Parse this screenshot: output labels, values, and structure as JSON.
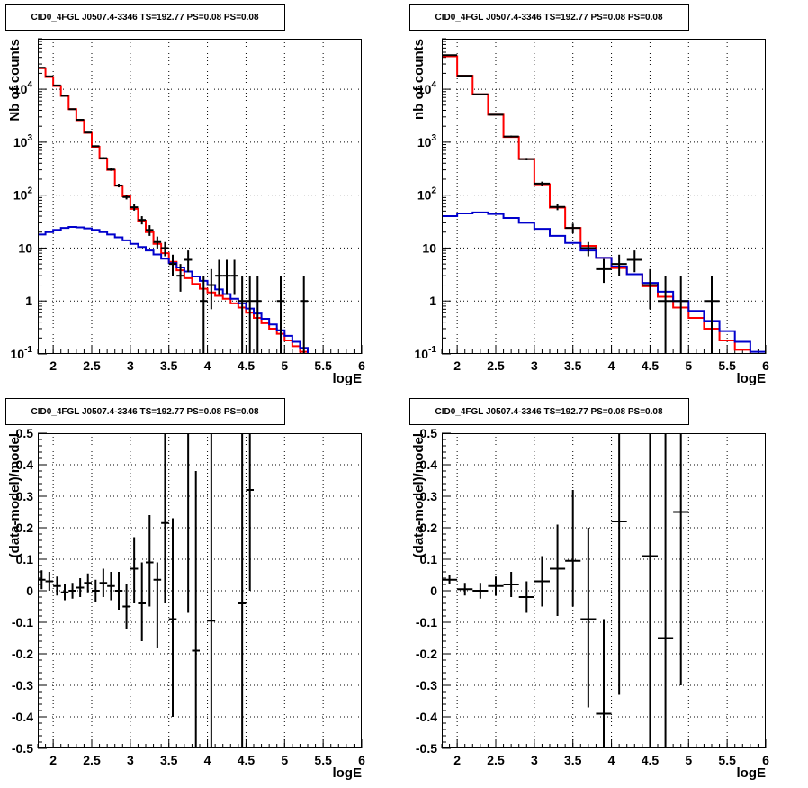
{
  "chart_data": [
    {
      "id": "top-left",
      "type": "line",
      "title": "CID0_4FGL J0507.4-3346 TS=192.77 PS=0.08 PS=0.08",
      "xlabel": "logE",
      "ylabel": "Nb of counts",
      "xlim": [
        1.8,
        6.0
      ],
      "ylim": [
        0.1,
        90000
      ],
      "yscale": "log",
      "grid": true,
      "xticks": [
        "2",
        "2.5",
        "3",
        "3.5",
        "4",
        "4.5",
        "5",
        "5.5",
        "6"
      ],
      "yticks": [
        "10^-1",
        "1",
        "10",
        "10^2",
        "10^3",
        "10^4"
      ],
      "bin_edges": [
        1.8,
        1.9,
        2.0,
        2.1,
        2.2,
        2.3,
        2.4,
        2.5,
        2.6,
        2.7,
        2.8,
        2.9,
        3.0,
        3.1,
        3.2,
        3.3,
        3.4,
        3.5,
        3.6,
        3.7,
        3.8,
        3.9,
        4.0,
        4.1,
        4.2,
        4.3,
        4.4,
        4.5,
        4.6,
        4.7,
        4.8,
        4.9,
        5.0,
        5.1,
        5.2,
        5.3,
        5.4,
        5.5,
        5.6,
        5.7,
        5.8,
        5.9,
        6.0
      ],
      "series": [
        {
          "color": "#ff0000",
          "kind": "step",
          "values": [
            25000,
            17000,
            11500,
            7500,
            4200,
            2600,
            1500,
            820,
            490,
            300,
            150,
            95,
            55,
            33,
            20,
            12,
            8,
            5.5,
            3.8,
            2.7,
            2.1,
            1.7,
            1.45,
            1.25,
            1.1,
            0.9,
            0.75,
            0.6,
            0.48,
            0.38,
            0.3,
            0.24,
            0.18,
            0.14,
            0.11,
            0.1,
            0.1,
            0.1,
            0.1,
            0.1,
            0.1,
            0.1
          ]
        },
        {
          "color": "#0000cc",
          "kind": "step",
          "values": [
            18,
            20,
            22,
            24,
            25,
            24.5,
            23.5,
            22,
            20,
            18,
            16,
            14,
            12,
            10.5,
            9,
            7.6,
            6.3,
            5.2,
            4.3,
            3.6,
            2.9,
            2.4,
            2.0,
            1.65,
            1.35,
            1.1,
            0.9,
            0.72,
            0.58,
            0.46,
            0.36,
            0.28,
            0.22,
            0.17,
            0.13,
            0.1,
            0.1,
            0.1,
            0.1,
            0.1,
            0.1,
            0.1
          ]
        },
        {
          "color": "#000000",
          "kind": "points",
          "points": [
            {
              "x": 1.85,
              "y": 25500,
              "xerr": 0.05,
              "ylo": 25300,
              "yhi": 25700
            },
            {
              "x": 1.95,
              "y": 17500,
              "xerr": 0.05,
              "ylo": 17300,
              "yhi": 17700
            },
            {
              "x": 2.05,
              "y": 11800,
              "xerr": 0.05,
              "ylo": 11600,
              "yhi": 12000
            },
            {
              "x": 2.15,
              "y": 7500,
              "xerr": 0.05,
              "ylo": 7350,
              "yhi": 7650
            },
            {
              "x": 2.25,
              "y": 4200,
              "xerr": 0.05,
              "ylo": 4100,
              "yhi": 4300
            },
            {
              "x": 2.35,
              "y": 2650,
              "xerr": 0.05,
              "ylo": 2580,
              "yhi": 2720
            },
            {
              "x": 2.45,
              "y": 1520,
              "xerr": 0.05,
              "ylo": 1480,
              "yhi": 1560
            },
            {
              "x": 2.55,
              "y": 840,
              "xerr": 0.05,
              "ylo": 810,
              "yhi": 870
            },
            {
              "x": 2.65,
              "y": 500,
              "xerr": 0.05,
              "ylo": 478,
              "yhi": 522
            },
            {
              "x": 2.75,
              "y": 305,
              "xerr": 0.05,
              "ylo": 288,
              "yhi": 322
            },
            {
              "x": 2.85,
              "y": 152,
              "xerr": 0.05,
              "ylo": 140,
              "yhi": 164
            },
            {
              "x": 2.95,
              "y": 92,
              "xerr": 0.05,
              "ylo": 83,
              "yhi": 101
            },
            {
              "x": 3.05,
              "y": 59,
              "xerr": 0.05,
              "ylo": 51,
              "yhi": 67
            },
            {
              "x": 3.15,
              "y": 34,
              "xerr": 0.05,
              "ylo": 28,
              "yhi": 40
            },
            {
              "x": 3.25,
              "y": 22,
              "xerr": 0.05,
              "ylo": 17,
              "yhi": 27
            },
            {
              "x": 3.35,
              "y": 13,
              "xerr": 0.05,
              "ylo": 9.5,
              "yhi": 16.5
            },
            {
              "x": 3.45,
              "y": 10,
              "xerr": 0.05,
              "ylo": 7,
              "yhi": 13
            },
            {
              "x": 3.55,
              "y": 5,
              "xerr": 0.05,
              "ylo": 3,
              "yhi": 7.5
            },
            {
              "x": 3.65,
              "y": 3,
              "xerr": 0.05,
              "ylo": 1.5,
              "yhi": 5
            },
            {
              "x": 3.75,
              "y": 6,
              "xerr": 0.05,
              "ylo": 3.5,
              "yhi": 9
            },
            {
              "x": 3.95,
              "y": 1,
              "xerr": 0.05,
              "ylo": 0.1,
              "yhi": 3
            },
            {
              "x": 4.05,
              "y": 2,
              "xerr": 0.05,
              "ylo": 0.7,
              "yhi": 4
            },
            {
              "x": 4.15,
              "y": 3,
              "xerr": 0.05,
              "ylo": 1.3,
              "yhi": 6
            },
            {
              "x": 4.25,
              "y": 3,
              "xerr": 0.05,
              "ylo": 1.3,
              "yhi": 6
            },
            {
              "x": 4.35,
              "y": 3,
              "xerr": 0.05,
              "ylo": 1.3,
              "yhi": 6
            },
            {
              "x": 4.45,
              "y": 1,
              "xerr": 0.05,
              "ylo": 0.1,
              "yhi": 3
            },
            {
              "x": 4.55,
              "y": 1,
              "xerr": 0.05,
              "ylo": 0.1,
              "yhi": 3
            },
            {
              "x": 4.65,
              "y": 1,
              "xerr": 0.05,
              "ylo": 0.1,
              "yhi": 3
            },
            {
              "x": 4.95,
              "y": 1,
              "xerr": 0.05,
              "ylo": 0.1,
              "yhi": 3
            },
            {
              "x": 5.25,
              "y": 1,
              "xerr": 0.05,
              "ylo": 0.1,
              "yhi": 3
            }
          ]
        }
      ]
    },
    {
      "id": "top-right",
      "type": "line",
      "title": "CID0_4FGL J0507.4-3346 TS=192.77 PS=0.08 PS=0.08",
      "xlabel": "logE",
      "ylabel": "nb of counts",
      "xlim": [
        1.8,
        6.0
      ],
      "ylim": [
        0.1,
        90000
      ],
      "yscale": "log",
      "grid": true,
      "xticks": [
        "2",
        "2.5",
        "3",
        "3.5",
        "4",
        "4.5",
        "5",
        "5.5",
        "6"
      ],
      "yticks": [
        "10^-1",
        "1",
        "10",
        "10^2",
        "10^3",
        "10^4"
      ],
      "bin_edges": [
        1.8,
        2.0,
        2.2,
        2.4,
        2.6,
        2.8,
        3.0,
        3.2,
        3.4,
        3.6,
        3.8,
        4.0,
        4.2,
        4.4,
        4.6,
        4.8,
        5.0,
        5.2,
        5.4,
        5.6,
        5.8,
        6.0
      ],
      "series": [
        {
          "color": "#ff0000",
          "kind": "step",
          "values": [
            42000,
            18000,
            8000,
            3300,
            1250,
            480,
            160,
            58,
            24,
            11,
            6.5,
            4.2,
            3.2,
            1.9,
            1.2,
            0.75,
            0.48,
            0.3,
            0.18,
            0.12,
            0.1
          ]
        },
        {
          "color": "#0000cc",
          "kind": "step",
          "values": [
            40,
            45,
            47,
            44,
            37,
            30,
            23,
            17,
            12.5,
            9,
            6.5,
            4.5,
            3.2,
            2.2,
            1.5,
            1.0,
            0.65,
            0.42,
            0.27,
            0.17,
            0.11
          ]
        },
        {
          "color": "#000000",
          "kind": "points",
          "points": [
            {
              "x": 1.9,
              "y": 44000,
              "xerr": 0.1,
              "ylo": 43700,
              "yhi": 44300
            },
            {
              "x": 2.1,
              "y": 18000,
              "xerr": 0.1,
              "ylo": 17800,
              "yhi": 18200
            },
            {
              "x": 2.3,
              "y": 8000,
              "xerr": 0.1,
              "ylo": 7870,
              "yhi": 8130
            },
            {
              "x": 2.5,
              "y": 3300,
              "xerr": 0.1,
              "ylo": 3220,
              "yhi": 3380
            },
            {
              "x": 2.7,
              "y": 1280,
              "xerr": 0.1,
              "ylo": 1230,
              "yhi": 1330
            },
            {
              "x": 2.9,
              "y": 480,
              "xerr": 0.1,
              "ylo": 455,
              "yhi": 505
            },
            {
              "x": 3.1,
              "y": 165,
              "xerr": 0.1,
              "ylo": 150,
              "yhi": 180
            },
            {
              "x": 3.3,
              "y": 60,
              "xerr": 0.1,
              "ylo": 52,
              "yhi": 68
            },
            {
              "x": 3.5,
              "y": 24,
              "xerr": 0.1,
              "ylo": 19,
              "yhi": 29
            },
            {
              "x": 3.7,
              "y": 10,
              "xerr": 0.1,
              "ylo": 7,
              "yhi": 13
            },
            {
              "x": 3.9,
              "y": 4,
              "xerr": 0.1,
              "ylo": 2.2,
              "yhi": 6.2
            },
            {
              "x": 4.1,
              "y": 5,
              "xerr": 0.1,
              "ylo": 3,
              "yhi": 7.5
            },
            {
              "x": 4.3,
              "y": 6,
              "xerr": 0.1,
              "ylo": 3.5,
              "yhi": 9
            },
            {
              "x": 4.5,
              "y": 2,
              "xerr": 0.1,
              "ylo": 0.7,
              "yhi": 4
            },
            {
              "x": 4.7,
              "y": 1,
              "xerr": 0.1,
              "ylo": 0.1,
              "yhi": 3
            },
            {
              "x": 4.9,
              "y": 1,
              "xerr": 0.1,
              "ylo": 0.1,
              "yhi": 3
            },
            {
              "x": 5.3,
              "y": 1,
              "xerr": 0.1,
              "ylo": 0.1,
              "yhi": 3
            }
          ]
        }
      ]
    },
    {
      "id": "bottom-left",
      "type": "scatter",
      "title": "CID0_4FGL J0507.4-3346 TS=192.77 PS=0.08 PS=0.08",
      "xlabel": "logE",
      "ylabel": "(data-model)/model",
      "xlim": [
        1.8,
        6.0
      ],
      "ylim": [
        -0.5,
        0.5
      ],
      "grid": true,
      "xticks": [
        "2",
        "2.5",
        "3",
        "3.5",
        "4",
        "4.5",
        "5",
        "5.5",
        "6"
      ],
      "yticks": [
        "-0.5",
        "-0.4",
        "-0.3",
        "-0.2",
        "-0.1",
        "0",
        "0.1",
        "0.2",
        "0.3",
        "0.4",
        "0.5"
      ],
      "series": [
        {
          "color": "#000000",
          "kind": "points",
          "points": [
            {
              "x": 1.85,
              "y": 0.035,
              "xerr": 0.05,
              "ylo": 0.005,
              "yhi": 0.065
            },
            {
              "x": 1.95,
              "y": 0.03,
              "xerr": 0.05,
              "ylo": 0.0,
              "yhi": 0.06
            },
            {
              "x": 2.05,
              "y": 0.015,
              "xerr": 0.05,
              "ylo": -0.015,
              "yhi": 0.045
            },
            {
              "x": 2.15,
              "y": -0.005,
              "xerr": 0.05,
              "ylo": -0.03,
              "yhi": 0.02
            },
            {
              "x": 2.25,
              "y": 0.0,
              "xerr": 0.05,
              "ylo": -0.025,
              "yhi": 0.025
            },
            {
              "x": 2.35,
              "y": 0.01,
              "xerr": 0.05,
              "ylo": -0.02,
              "yhi": 0.04
            },
            {
              "x": 2.45,
              "y": 0.025,
              "xerr": 0.05,
              "ylo": -0.005,
              "yhi": 0.055
            },
            {
              "x": 2.55,
              "y": 0.0,
              "xerr": 0.05,
              "ylo": -0.035,
              "yhi": 0.035
            },
            {
              "x": 2.65,
              "y": 0.025,
              "xerr": 0.05,
              "ylo": -0.02,
              "yhi": 0.07
            },
            {
              "x": 2.75,
              "y": 0.015,
              "xerr": 0.05,
              "ylo": -0.03,
              "yhi": 0.06
            },
            {
              "x": 2.85,
              "y": 0.0,
              "xerr": 0.05,
              "ylo": -0.06,
              "yhi": 0.06
            },
            {
              "x": 2.95,
              "y": -0.05,
              "xerr": 0.05,
              "ylo": -0.12,
              "yhi": 0.02
            },
            {
              "x": 3.05,
              "y": 0.07,
              "xerr": 0.05,
              "ylo": -0.04,
              "yhi": 0.17
            },
            {
              "x": 3.15,
              "y": -0.04,
              "xerr": 0.05,
              "ylo": -0.16,
              "yhi": 0.09
            },
            {
              "x": 3.25,
              "y": 0.09,
              "xerr": 0.05,
              "ylo": -0.05,
              "yhi": 0.24
            },
            {
              "x": 3.35,
              "y": 0.035,
              "xerr": 0.05,
              "ylo": -0.18,
              "yhi": 0.09
            },
            {
              "x": 3.45,
              "y": 0.215,
              "xerr": 0.05,
              "ylo": -0.04,
              "yhi": 0.5
            },
            {
              "x": 3.55,
              "y": -0.09,
              "xerr": 0.05,
              "ylo": -0.4,
              "yhi": 0.23
            },
            {
              "x": 3.75,
              "y": 0.5,
              "xerr": 0.05,
              "ylo": -0.07,
              "yhi": 0.5
            },
            {
              "x": 3.85,
              "y": -0.19,
              "xerr": 0.05,
              "ylo": -0.5,
              "yhi": 0.38
            },
            {
              "x": 4.05,
              "y": -0.095,
              "xerr": 0.05,
              "ylo": -0.5,
              "yhi": 0.5
            },
            {
              "x": 4.45,
              "y": -0.04,
              "xerr": 0.05,
              "ylo": -0.5,
              "yhi": 0.5
            },
            {
              "x": 4.55,
              "y": 0.32,
              "xerr": 0.05,
              "ylo": 0.0,
              "yhi": 0.5
            }
          ]
        }
      ]
    },
    {
      "id": "bottom-right",
      "type": "scatter",
      "title": "CID0_4FGL J0507.4-3346 TS=192.77 PS=0.08 PS=0.08",
      "xlabel": "logE",
      "ylabel": "(data-model)/model",
      "xlim": [
        1.8,
        6.0
      ],
      "ylim": [
        -0.5,
        0.5
      ],
      "grid": true,
      "xticks": [
        "2",
        "2.5",
        "3",
        "3.5",
        "4",
        "4.5",
        "5",
        "5.5",
        "6"
      ],
      "yticks": [
        "-0.5",
        "-0.4",
        "-0.3",
        "-0.2",
        "-0.1",
        "0",
        "0.1",
        "0.2",
        "0.3",
        "0.4",
        "0.5"
      ],
      "series": [
        {
          "color": "#000000",
          "kind": "points",
          "points": [
            {
              "x": 1.9,
              "y": 0.035,
              "xerr": 0.1,
              "ylo": 0.02,
              "yhi": 0.05
            },
            {
              "x": 2.1,
              "y": 0.005,
              "xerr": 0.1,
              "ylo": -0.015,
              "yhi": 0.025
            },
            {
              "x": 2.3,
              "y": 0.0,
              "xerr": 0.1,
              "ylo": -0.025,
              "yhi": 0.025
            },
            {
              "x": 2.5,
              "y": 0.015,
              "xerr": 0.1,
              "ylo": -0.015,
              "yhi": 0.045
            },
            {
              "x": 2.7,
              "y": 0.02,
              "xerr": 0.1,
              "ylo": -0.02,
              "yhi": 0.06
            },
            {
              "x": 2.9,
              "y": -0.02,
              "xerr": 0.1,
              "ylo": -0.07,
              "yhi": 0.03
            },
            {
              "x": 3.1,
              "y": 0.03,
              "xerr": 0.1,
              "ylo": -0.05,
              "yhi": 0.11
            },
            {
              "x": 3.3,
              "y": 0.07,
              "xerr": 0.1,
              "ylo": -0.08,
              "yhi": 0.21
            },
            {
              "x": 3.5,
              "y": 0.095,
              "xerr": 0.1,
              "ylo": -0.05,
              "yhi": 0.32
            },
            {
              "x": 3.7,
              "y": -0.09,
              "xerr": 0.1,
              "ylo": -0.37,
              "yhi": 0.2
            },
            {
              "x": 3.9,
              "y": -0.39,
              "xerr": 0.1,
              "ylo": -0.5,
              "yhi": -0.09
            },
            {
              "x": 4.1,
              "y": 0.22,
              "xerr": 0.1,
              "ylo": -0.33,
              "yhi": 0.5
            },
            {
              "x": 4.5,
              "y": 0.11,
              "xerr": 0.1,
              "ylo": -0.5,
              "yhi": 0.5
            },
            {
              "x": 4.7,
              "y": -0.15,
              "xerr": 0.1,
              "ylo": -0.5,
              "yhi": 0.5
            },
            {
              "x": 4.9,
              "y": 0.25,
              "xerr": 0.1,
              "ylo": -0.3,
              "yhi": 0.5
            }
          ]
        }
      ]
    }
  ]
}
